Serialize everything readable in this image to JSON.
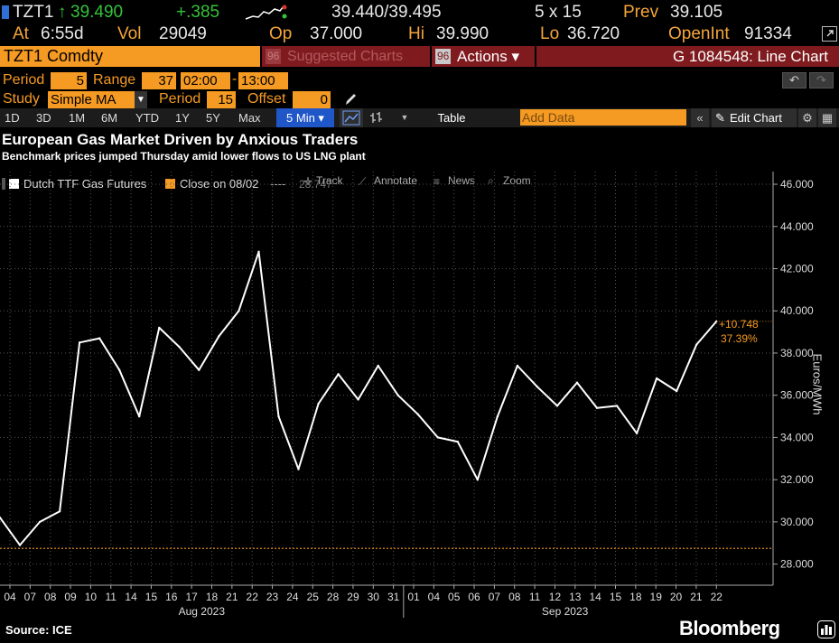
{
  "quote": {
    "ticker": "TZT1",
    "last_arrow": "↑",
    "last": "39.490",
    "change": "+.385",
    "bid_ask": "39.440/39.495",
    "size": "5 x 15",
    "prev_label": "Prev",
    "prev": "39.105",
    "at_label": "At",
    "time": "6:55d",
    "vol_label": "Vol",
    "vol": "29049",
    "open_label": "Op",
    "open": "37.000",
    "hi_label": "Hi",
    "hi": "39.990",
    "lo_label": "Lo",
    "lo": "36.720",
    "oi_label": "OpenInt",
    "oi": "91334"
  },
  "header": {
    "security": "TZT1 Comdty",
    "suggested_num": "96",
    "suggested": "Suggested Charts",
    "actions_num": "96",
    "actions": "Actions ▾",
    "function": "G 1084548: Line Chart"
  },
  "controls": {
    "period_label": "Period",
    "period_value": "5",
    "range_label": "Range",
    "range_value": "37",
    "time_start": "02:00",
    "time_end": "13:00",
    "study_label": "Study",
    "study_value": "Simple MA",
    "study_period_label": "Period",
    "study_period_value": "15",
    "offset_label": "Offset",
    "offset_value": "0"
  },
  "toolbar": {
    "ranges": [
      "1D",
      "3D",
      "1M",
      "6M",
      "YTD",
      "1Y",
      "5Y",
      "Max"
    ],
    "interval": "5 Min ▾",
    "table": "Table",
    "add_data_placeholder": "Add Data",
    "edit_chart": "Edit Chart"
  },
  "legend_bar": {
    "series_label": "Dutch TTF Gas Futures",
    "close_label": "Close on 08/02",
    "close_dashes": "----",
    "close_value": "28.747",
    "track": "Track",
    "annotate": "Annotate",
    "news": "News",
    "zoom": "Zoom"
  },
  "footer": {
    "source": "Source: ICE",
    "brand": "Bloomberg"
  },
  "colors": {
    "accent_orange": "#f59a22",
    "line": "#ffffff",
    "reference_line": "#f59a22",
    "header_red": "#7f1b1f",
    "gain": "#35c23b"
  },
  "chart_data": {
    "type": "line",
    "title": "European Gas Market Driven by Anxious Traders",
    "subtitle": "Benchmark prices jumped Thursday amid lower flows to US LNG plant",
    "ylabel": "Euros/MWh",
    "ylim": [
      27.0,
      46.6
    ],
    "y_ticks": [
      "28.000",
      "30.000",
      "32.000",
      "34.000",
      "36.000",
      "38.000",
      "40.000",
      "42.000",
      "44.000",
      "46.000"
    ],
    "x_day_labels": [
      "04",
      "07",
      "08",
      "09",
      "10",
      "11",
      "14",
      "15",
      "16",
      "17",
      "18",
      "21",
      "22",
      "23",
      "24",
      "25",
      "28",
      "29",
      "30",
      "31",
      "01",
      "04",
      "05",
      "06",
      "07",
      "08",
      "11",
      "12",
      "13",
      "14",
      "15",
      "18",
      "19",
      "20",
      "21",
      "22"
    ],
    "x_month_labels": [
      "Aug 2023",
      "Sep 2023"
    ],
    "reference_line": {
      "label": "Close on 08/02",
      "value": 28.747
    },
    "last_annotation": {
      "change": "+10.748",
      "percent": "37.39%"
    },
    "series": [
      {
        "name": "Dutch TTF Gas Futures",
        "x": [
          "08/03",
          "08/04",
          "08/07",
          "08/08",
          "08/09",
          "08/10",
          "08/11",
          "08/14",
          "08/15",
          "08/16",
          "08/17",
          "08/18",
          "08/21",
          "08/22",
          "08/23",
          "08/24",
          "08/25",
          "08/28",
          "08/29",
          "08/30",
          "08/31",
          "09/01",
          "09/04",
          "09/05",
          "09/06",
          "09/07",
          "09/08",
          "09/11",
          "09/12",
          "09/13",
          "09/14",
          "09/15",
          "09/18",
          "09/19",
          "09/20",
          "09/21",
          "09/22"
        ],
        "y": [
          30.2,
          28.9,
          30.0,
          30.5,
          38.5,
          38.7,
          37.2,
          35.0,
          39.2,
          38.3,
          37.2,
          38.8,
          40.0,
          42.8,
          35.0,
          32.5,
          35.6,
          37.0,
          35.8,
          37.4,
          36.0,
          35.1,
          34.0,
          33.8,
          32.0,
          35.0,
          37.4,
          36.4,
          35.5,
          36.6,
          35.4,
          35.5,
          34.2,
          36.8,
          36.2,
          38.4,
          39.5
        ]
      }
    ]
  }
}
